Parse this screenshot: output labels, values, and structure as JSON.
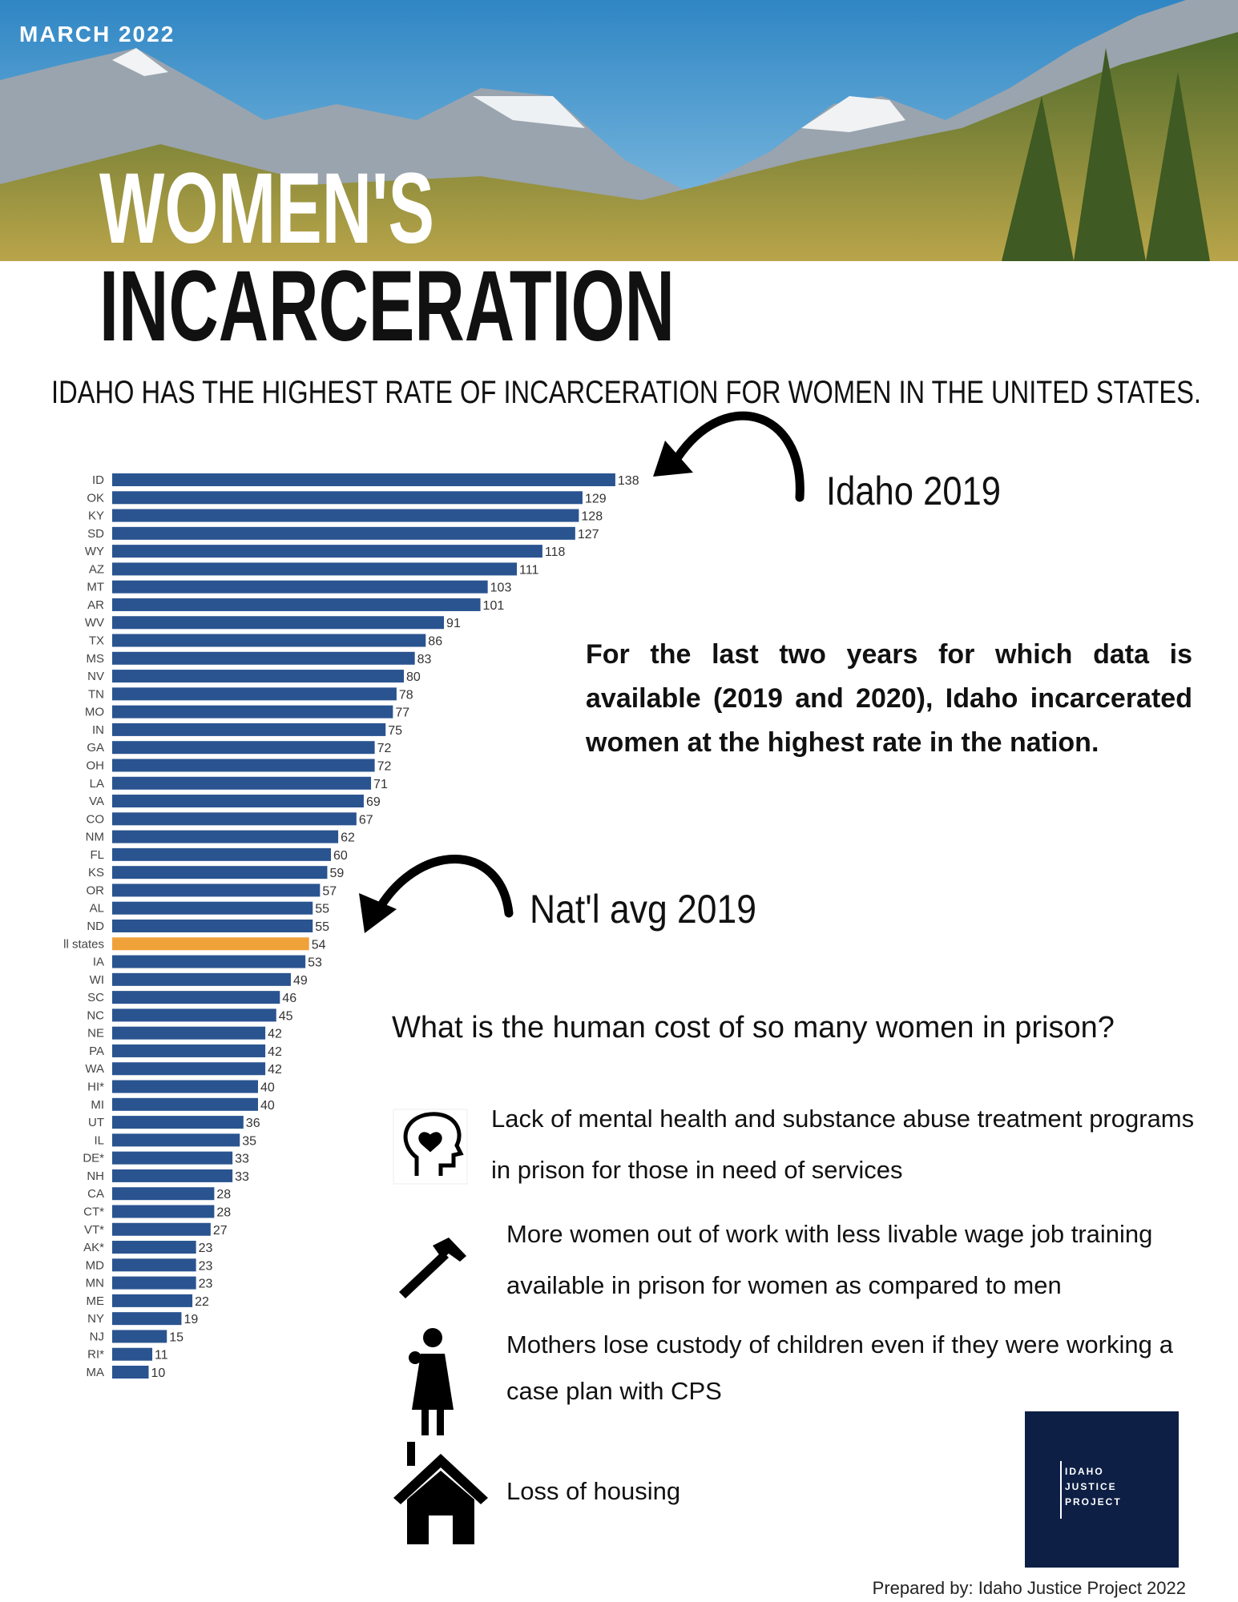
{
  "header": {
    "date": "MARCH 2022",
    "title_line1": "WOMEN'S",
    "title_line2": "INCARCERATION",
    "subtitle": "IDAHO HAS THE HIGHEST RATE OF INCARCERATION FOR WOMEN IN THE UNITED STATES."
  },
  "chart_data": {
    "type": "bar",
    "orientation": "horizontal",
    "categories": [
      "ID",
      "OK",
      "KY",
      "SD",
      "WY",
      "AZ",
      "MT",
      "AR",
      "WV",
      "TX",
      "MS",
      "NV",
      "TN",
      "MO",
      "IN",
      "GA",
      "OH",
      "LA",
      "VA",
      "CO",
      "NM",
      "FL",
      "KS",
      "OR",
      "AL",
      "ND",
      "ll states",
      "IA",
      "WI",
      "SC",
      "NC",
      "NE",
      "PA",
      "WA",
      "HI*",
      "MI",
      "UT",
      "IL",
      "DE*",
      "NH",
      "CA",
      "CT*",
      "VT*",
      "AK*",
      "MD",
      "MN",
      "ME",
      "NY",
      "NJ",
      "RI*",
      "MA"
    ],
    "values": [
      138,
      129,
      128,
      127,
      118,
      111,
      103,
      101,
      91,
      86,
      83,
      80,
      78,
      77,
      75,
      72,
      72,
      71,
      69,
      67,
      62,
      60,
      59,
      57,
      55,
      55,
      54,
      53,
      49,
      46,
      45,
      42,
      42,
      42,
      40,
      40,
      36,
      35,
      33,
      33,
      28,
      28,
      27,
      23,
      23,
      23,
      22,
      19,
      15,
      11,
      10
    ],
    "colors": [
      "#2a5490",
      "#2a5490",
      "#2a5490",
      "#2a5490",
      "#2a5490",
      "#2a5490",
      "#2a5490",
      "#2a5490",
      "#2a5490",
      "#2a5490",
      "#2a5490",
      "#2a5490",
      "#2a5490",
      "#2a5490",
      "#2a5490",
      "#2a5490",
      "#2a5490",
      "#2a5490",
      "#2a5490",
      "#2a5490",
      "#2a5490",
      "#2a5490",
      "#2a5490",
      "#2a5490",
      "#2a5490",
      "#2a5490",
      "#f0a23a",
      "#2a5490",
      "#2a5490",
      "#2a5490",
      "#2a5490",
      "#2a5490",
      "#2a5490",
      "#2a5490",
      "#2a5490",
      "#2a5490",
      "#2a5490",
      "#2a5490",
      "#2a5490",
      "#2a5490",
      "#2a5490",
      "#2a5490",
      "#2a5490",
      "#2a5490",
      "#2a5490",
      "#2a5490",
      "#2a5490",
      "#2a5490",
      "#2a5490",
      "#2a5490",
      "#2a5490"
    ],
    "annotations": [
      {
        "text": "Idaho 2019"
      },
      {
        "text": "Nat'l avg 2019"
      }
    ]
  },
  "callout": "For the last two years for which data is available (2019 and 2020), Idaho incarcerated women at the highest rate in the nation.",
  "costs": {
    "question": "What is the human cost of so many women in prison?",
    "items": [
      "Lack of mental health and substance abuse treatment programs in prison for those in need of services",
      "More women out of work with less livable wage job training available in prison for women as compared to men",
      "Mothers lose custody of children even if they were working a case plan with CPS",
      "Loss of housing"
    ]
  },
  "logo": {
    "lines": [
      "IDAHO",
      "JUSTICE",
      "PROJECT"
    ]
  },
  "footer": "Prepared by: Idaho Justice Project 2022"
}
